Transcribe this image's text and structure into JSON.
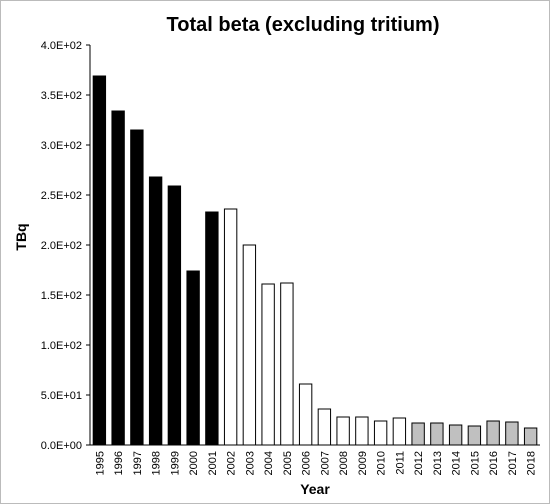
{
  "chart_data": {
    "type": "bar",
    "title": "Total beta (excluding tritium)",
    "x_label": "Year",
    "y_label": "TBq",
    "categories": [
      "1995",
      "1996",
      "1997",
      "1998",
      "1999",
      "2000",
      "2001",
      "2002",
      "2003",
      "2004",
      "2005",
      "2006",
      "2007",
      "2008",
      "2009",
      "2010",
      "2011",
      "2012",
      "2013",
      "2014",
      "2015",
      "2016",
      "2017",
      "2018"
    ],
    "values": [
      369,
      334,
      315,
      268,
      259,
      174,
      233,
      236,
      200,
      161,
      162,
      61,
      36,
      28,
      28,
      24,
      27,
      22,
      22,
      20,
      19,
      24,
      23,
      17
    ],
    "colors": [
      "#000000",
      "#000000",
      "#000000",
      "#000000",
      "#000000",
      "#000000",
      "#000000",
      "#ffffff",
      "#ffffff",
      "#ffffff",
      "#ffffff",
      "#ffffff",
      "#ffffff",
      "#ffffff",
      "#ffffff",
      "#ffffff",
      "#ffffff",
      "#c0c0c0",
      "#c0c0c0",
      "#c0c0c0",
      "#c0c0c0",
      "#c0c0c0",
      "#c0c0c0",
      "#c0c0c0"
    ],
    "ylim": [
      0,
      400
    ],
    "yticks": [
      {
        "value": 0,
        "label": "0.0E+00"
      },
      {
        "value": 50,
        "label": "5.0E+01"
      },
      {
        "value": 100,
        "label": "1.0E+02"
      },
      {
        "value": 150,
        "label": "1.5E+02"
      },
      {
        "value": 200,
        "label": "2.0E+02"
      },
      {
        "value": 250,
        "label": "2.5E+02"
      },
      {
        "value": 300,
        "label": "3.0E+02"
      },
      {
        "value": 350,
        "label": "3.5E+02"
      },
      {
        "value": 400,
        "label": "4.0E+02"
      }
    ],
    "grid": false
  }
}
